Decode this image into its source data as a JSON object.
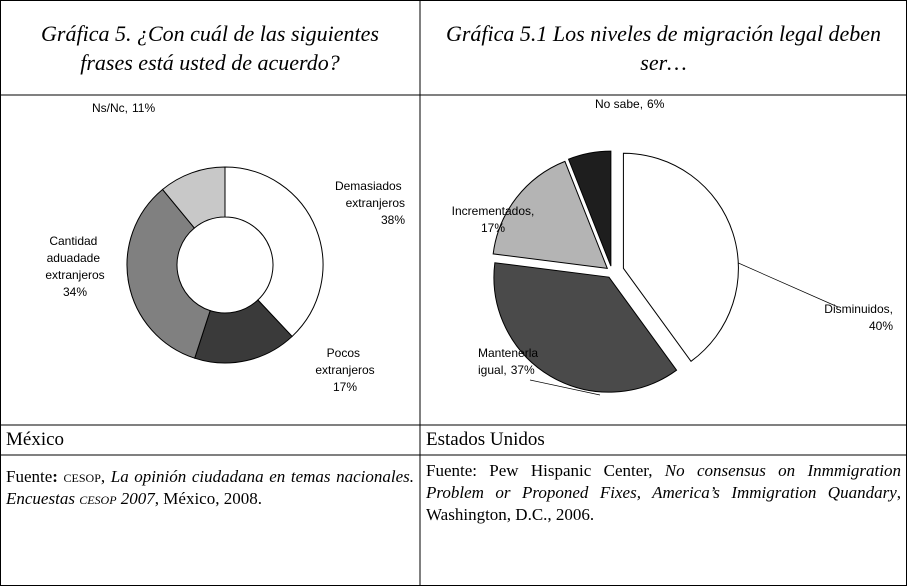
{
  "chart_data": [
    {
      "type": "pie",
      "donut": true,
      "title": "Gráfica 5. ¿Con cuál de las siguientes frases está usted de acuerdo?",
      "categories": [
        "Demasiados extranjeros",
        "Pocos extranjeros",
        "Cantidad aduadade extranjeros",
        "Ns/Nc,"
      ],
      "values": [
        38,
        17,
        34,
        11
      ],
      "value_labels": [
        "38%",
        "17%",
        "34%",
        "11%"
      ],
      "colors": [
        "#ffffff",
        "#3a3a3a",
        "#808080",
        "#c8c8c8"
      ]
    },
    {
      "type": "pie",
      "donut": false,
      "exploded": true,
      "title": "Gráfica 5.1 Los niveles de migración legal deben ser…",
      "categories": [
        "Disminuidos,",
        "Mantenerla igual,",
        "Incrementados,",
        "No sabe,"
      ],
      "values": [
        40,
        37,
        17,
        6
      ],
      "value_labels": [
        "40%",
        "37%",
        "17%",
        "6%"
      ],
      "colors": [
        "#ffffff",
        "#4a4a4a",
        "#b4b4b4",
        "#1e1e1e"
      ]
    }
  ],
  "table": {
    "rows": [
      [
        "México",
        "Estados Unidos"
      ]
    ],
    "sources": [
      [
        "Fuente",
        ": ",
        "cesop",
        ", ",
        "La opinión ciudadana en temas nacionales. Encuestas ",
        "cesop",
        " 2007",
        ", México, 2008."
      ],
      [
        "Fuente: Pew Hispanic Center, ",
        "No consensus on Inmmigration Problem or Proponed Fixes, America’s Immigration Quandary",
        ", Washington, D.C., 2006."
      ]
    ]
  }
}
